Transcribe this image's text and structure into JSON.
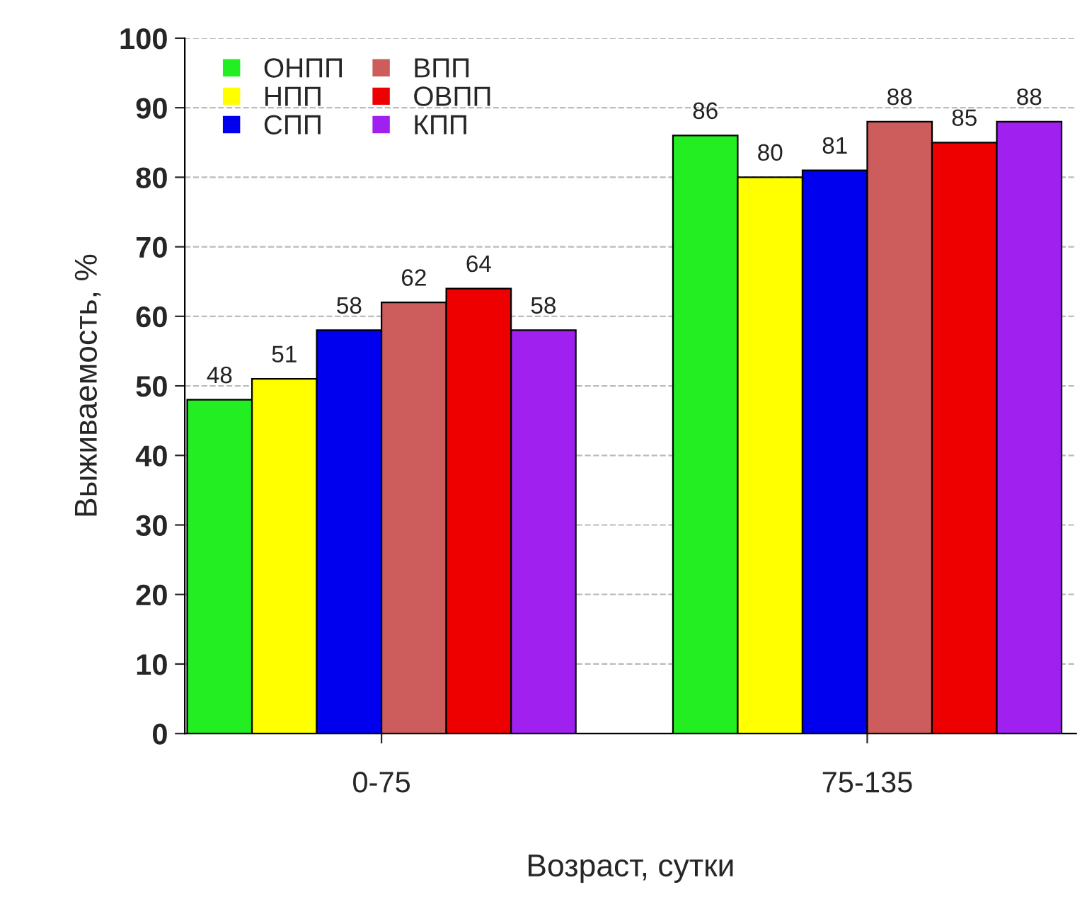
{
  "chart_data": {
    "type": "bar",
    "xlabel": "Возраст, сутки",
    "ylabel": "Выживаемость, %",
    "categories": [
      "0-75",
      "75-135"
    ],
    "series": [
      {
        "name": "ОНПП",
        "color": "#22ee22",
        "values": [
          48,
          86
        ]
      },
      {
        "name": "НПП",
        "color": "#ffff00",
        "values": [
          51,
          80
        ]
      },
      {
        "name": "СПП",
        "color": "#0000ee",
        "values": [
          58,
          81
        ]
      },
      {
        "name": "ВПП",
        "color": "#cd5c5c",
        "values": [
          62,
          88
        ]
      },
      {
        "name": "ОВПП",
        "color": "#ee0000",
        "values": [
          64,
          85
        ]
      },
      {
        "name": "КПП",
        "color": "#a020f0",
        "values": [
          58,
          88
        ]
      }
    ],
    "ylim": [
      0,
      100
    ],
    "yticks": [
      0,
      10,
      20,
      30,
      40,
      50,
      60,
      70,
      80,
      90,
      100
    ],
    "grid": "y",
    "legend": "top left",
    "data_labels": true
  }
}
